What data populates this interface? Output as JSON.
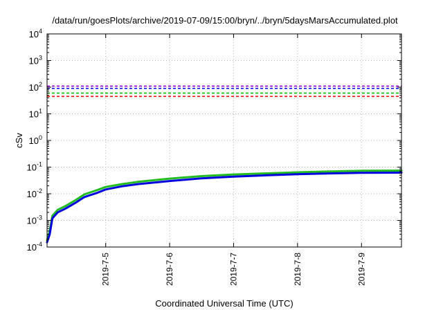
{
  "chart_data": {
    "type": "line",
    "title": "/data/run/goesPlots/archive/2019-07-09/15:00/bryn/../bryn/5daysMarsAccumulated.plot",
    "xlabel": "Coordinated Universal Time (UTC)",
    "ylabel": "cSv",
    "yscale": "log",
    "ylim": [
      0.0001,
      10000
    ],
    "y_ticks": [
      {
        "value": 0.0001,
        "base": "10",
        "exp": "-4"
      },
      {
        "value": 0.001,
        "base": "10",
        "exp": "-3"
      },
      {
        "value": 0.01,
        "base": "10",
        "exp": "-2"
      },
      {
        "value": 0.1,
        "base": "10",
        "exp": "-1"
      },
      {
        "value": 1,
        "base": "10",
        "exp": "0"
      },
      {
        "value": 10,
        "base": "10",
        "exp": "1"
      },
      {
        "value": 100,
        "base": "10",
        "exp": "2"
      },
      {
        "value": 1000,
        "base": "10",
        "exp": "3"
      },
      {
        "value": 10000,
        "base": "10",
        "exp": "4"
      }
    ],
    "xlim": [
      "2019-07-04 02:00",
      "2019-07-09 15:00"
    ],
    "x_ticks": [
      {
        "value": "2019-07-05 00:00",
        "label": "2019-7-5"
      },
      {
        "value": "2019-07-06 00:00",
        "label": "2019-7-6"
      },
      {
        "value": "2019-07-07 00:00",
        "label": "2019-7-7"
      },
      {
        "value": "2019-07-08 00:00",
        "label": "2019-7-8"
      },
      {
        "value": "2019-07-09 00:00",
        "label": "2019-7-9"
      }
    ],
    "grid": true,
    "thresholds": [
      {
        "value": 110,
        "color": "#9400d3"
      },
      {
        "value": 90,
        "color": "#0000ff"
      },
      {
        "value": 60,
        "color": "#00bb00"
      },
      {
        "value": 45,
        "color": "#ff0000"
      }
    ],
    "series": [
      {
        "color": "#22bb22",
        "x": [
          "2019-07-04 02:00",
          "2019-07-04 03:00",
          "2019-07-04 04:00",
          "2019-07-04 06:00",
          "2019-07-04 09:00",
          "2019-07-04 13:00",
          "2019-07-04 16:00",
          "2019-07-04 21:00",
          "2019-07-05 00:00",
          "2019-07-05 06:00",
          "2019-07-05 12:00",
          "2019-07-06 00:00",
          "2019-07-06 12:00",
          "2019-07-07 00:00",
          "2019-07-07 12:00",
          "2019-07-08 00:00",
          "2019-07-08 12:00",
          "2019-07-09 00:00",
          "2019-07-09 15:00"
        ],
        "values": [
          0.00018,
          0.0004,
          0.0015,
          0.0025,
          0.0035,
          0.006,
          0.0095,
          0.014,
          0.018,
          0.023,
          0.028,
          0.037,
          0.046,
          0.053,
          0.058,
          0.064,
          0.069,
          0.073,
          0.074
        ]
      },
      {
        "color": "#0000dd",
        "x": [
          "2019-07-04 02:00",
          "2019-07-04 03:00",
          "2019-07-04 04:00",
          "2019-07-04 06:00",
          "2019-07-04 09:00",
          "2019-07-04 13:00",
          "2019-07-04 16:00",
          "2019-07-04 21:00",
          "2019-07-05 00:00",
          "2019-07-05 06:00",
          "2019-07-05 12:00",
          "2019-07-06 00:00",
          "2019-07-06 12:00",
          "2019-07-07 00:00",
          "2019-07-07 12:00",
          "2019-07-08 00:00",
          "2019-07-08 12:00",
          "2019-07-09 00:00",
          "2019-07-09 15:00"
        ],
        "values": [
          0.00015,
          0.0003,
          0.0012,
          0.002,
          0.0028,
          0.0048,
          0.0075,
          0.011,
          0.0145,
          0.019,
          0.023,
          0.03,
          0.038,
          0.044,
          0.049,
          0.054,
          0.058,
          0.061,
          0.062
        ]
      }
    ]
  }
}
